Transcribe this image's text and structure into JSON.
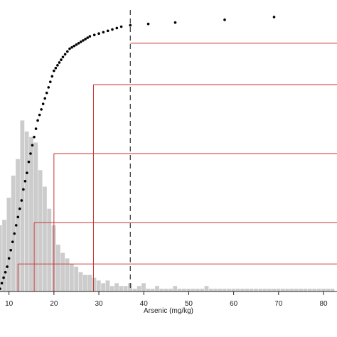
{
  "colors": {
    "histogram": "#cccccc",
    "ecdf_points": "#000000",
    "reference_lines": "#c83232",
    "threshold_line": "#333333",
    "axis": "#222222"
  },
  "chart_data": {
    "type": "scatter",
    "title": "",
    "xlabel": "Arsenic (mg/kg)",
    "ylabel": "",
    "xlim": [
      8,
      83
    ],
    "ylim": [
      0,
      1
    ],
    "x_ticks": [
      10,
      20,
      30,
      40,
      50,
      60,
      70,
      80
    ],
    "x_tick_labels": [
      "10",
      "20",
      "30",
      "40",
      "50",
      "60",
      "70",
      "80"
    ],
    "grid": false,
    "legend": "none",
    "threshold_x": 37,
    "series": [
      {
        "kind": "histogram",
        "x": [
          8,
          9,
          10,
          11,
          12,
          13,
          14,
          15,
          16,
          17,
          18,
          19,
          20,
          21,
          22,
          23,
          24,
          25,
          26,
          27,
          28,
          29,
          30,
          31,
          32,
          33,
          34,
          35,
          36,
          37,
          38,
          39,
          40,
          41,
          42,
          43,
          44,
          45,
          46,
          47,
          48,
          49,
          50,
          51,
          52,
          53,
          54,
          55,
          56,
          57,
          58,
          59,
          60,
          61,
          62,
          63,
          64,
          65,
          66,
          67,
          68,
          69,
          70,
          71,
          72,
          73,
          74,
          75,
          76,
          77,
          78,
          79,
          80,
          81,
          82
        ],
        "values": [
          0.24,
          0.26,
          0.34,
          0.42,
          0.48,
          0.62,
          0.58,
          0.56,
          0.54,
          0.44,
          0.38,
          0.3,
          0.24,
          0.17,
          0.14,
          0.12,
          0.1,
          0.09,
          0.07,
          0.06,
          0.06,
          0.05,
          0.04,
          0.03,
          0.04,
          0.02,
          0.03,
          0.02,
          0.02,
          0.03,
          0.01,
          0.02,
          0.03,
          0.01,
          0.01,
          0.02,
          0.01,
          0.01,
          0.01,
          0.02,
          0.01,
          0.01,
          0.01,
          0.01,
          0.01,
          0.01,
          0.02,
          0.01,
          0.01,
          0.01,
          0.01,
          0.01,
          0.01,
          0.01,
          0.01,
          0.01,
          0.01,
          0.01,
          0.01,
          0.01,
          0.01,
          0.01,
          0.01,
          0.01,
          0.01,
          0.01,
          0.01,
          0.01,
          0.01,
          0.01,
          0.01,
          0.01,
          0.01,
          0.01,
          0.01
        ]
      },
      {
        "kind": "ecdf",
        "x": [
          8.0,
          8.4,
          8.8,
          9.2,
          9.6,
          10.0,
          10.4,
          10.8,
          11.2,
          11.6,
          12.0,
          12.4,
          12.8,
          13.2,
          13.6,
          14.0,
          14.4,
          14.8,
          15.2,
          15.6,
          16.0,
          16.4,
          16.8,
          17.2,
          17.6,
          18.0,
          18.4,
          18.8,
          19.2,
          19.6,
          20.0,
          20.4,
          20.8,
          21.2,
          21.6,
          22.0,
          22.5,
          23.0,
          23.5,
          24.0,
          24.5,
          25.0,
          25.5,
          26.0,
          26.5,
          27.0,
          27.5,
          28.0,
          29.0,
          30.0,
          31.0,
          32.0,
          33.0,
          34.0,
          35.0,
          37.0,
          41.0,
          47.0,
          58.0,
          69.0
        ],
        "values": [
          0.01,
          0.03,
          0.05,
          0.07,
          0.09,
          0.12,
          0.15,
          0.18,
          0.21,
          0.24,
          0.27,
          0.3,
          0.33,
          0.37,
          0.4,
          0.43,
          0.47,
          0.5,
          0.53,
          0.56,
          0.59,
          0.62,
          0.64,
          0.66,
          0.68,
          0.7,
          0.72,
          0.74,
          0.76,
          0.78,
          0.8,
          0.81,
          0.82,
          0.83,
          0.84,
          0.85,
          0.86,
          0.87,
          0.88,
          0.885,
          0.89,
          0.895,
          0.9,
          0.905,
          0.91,
          0.915,
          0.92,
          0.925,
          0.93,
          0.935,
          0.94,
          0.945,
          0.95,
          0.955,
          0.96,
          0.965,
          0.97,
          0.975,
          0.985,
          0.995
        ]
      }
    ],
    "reference_lines": [
      {
        "x": 12,
        "y": 0.1
      },
      {
        "x": 15.6,
        "y": 0.25
      },
      {
        "x": 20,
        "y": 0.5
      },
      {
        "x": 28.8,
        "y": 0.75
      },
      {
        "x": 37,
        "y": 0.9
      }
    ]
  }
}
